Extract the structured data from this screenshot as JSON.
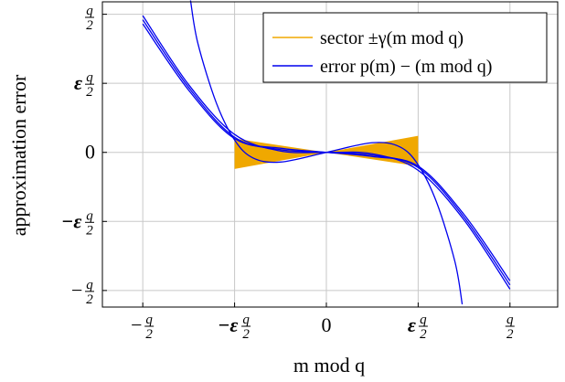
{
  "chart_data": {
    "type": "line",
    "xlabel": "m mod q",
    "ylabel": "approximation error",
    "x_ticks": [
      {
        "value": -1.0,
        "pre": "−",
        "eps": false
      },
      {
        "value": -0.5,
        "pre": "−",
        "eps": true
      },
      {
        "value": 0.0,
        "plain": "0"
      },
      {
        "value": 0.5,
        "pre": "",
        "eps": true
      },
      {
        "value": 1.0,
        "pre": "",
        "eps": false
      }
    ],
    "y_ticks": [
      {
        "value": 1.0,
        "pre": "",
        "eps": false
      },
      {
        "value": 0.5,
        "pre": "",
        "eps": true
      },
      {
        "value": 0.0,
        "plain": "0"
      },
      {
        "value": -0.5,
        "pre": "−",
        "eps": true
      },
      {
        "value": -1.0,
        "pre": "−",
        "eps": false
      }
    ],
    "frac_num": "q",
    "frac_den": "2",
    "eps_symbol": "ε",
    "xlim": [
      -1.22,
      1.26
    ],
    "ylim": [
      -1.12,
      1.09
    ],
    "grid": true,
    "legend_position": "top-right",
    "legend": [
      {
        "label": "sector ±γ(m mod q)",
        "color": "#f0a800"
      },
      {
        "label": "error p(m) − (m mod q)",
        "color": "#0000ee"
      }
    ],
    "series": [
      {
        "name": "sector ±γ(m mod q)",
        "kind": "band",
        "color": "#f0a800",
        "x": [
          -0.5,
          0.0,
          0.5
        ],
        "upper": [
          0.1,
          0.0,
          0.12
        ],
        "lower": [
          -0.12,
          0.0,
          -0.1
        ]
      },
      {
        "name": "error p(m) − (m mod q)",
        "kind": "lines",
        "color": "#0000ee",
        "lines": [
          {
            "x": [
              -1.0,
              -0.75,
              -0.5,
              -0.25,
              0.0,
              0.25,
              0.5,
              0.75,
              1.0
            ],
            "y": [
              0.99,
              0.49,
              0.13,
              0.01,
              0.0,
              -0.01,
              -0.13,
              -0.49,
              -0.99
            ]
          },
          {
            "x": [
              -1.0,
              -0.75,
              -0.5,
              -0.25,
              0.0,
              0.25,
              0.5,
              0.75,
              1.0
            ],
            "y": [
              0.96,
              0.47,
              0.11,
              0.02,
              0.0,
              -0.02,
              -0.11,
              -0.47,
              -0.96
            ]
          },
          {
            "x": [
              -1.0,
              -0.75,
              -0.5,
              -0.25,
              0.0,
              0.25,
              0.5,
              0.75,
              1.0
            ],
            "y": [
              0.93,
              0.45,
              0.1,
              0.03,
              0.0,
              -0.03,
              -0.1,
              -0.45,
              -0.93
            ]
          },
          {
            "x": [
              -0.74,
              -0.7,
              -0.6,
              -0.5,
              -0.4,
              -0.25,
              0.0,
              0.25,
              0.4,
              0.5,
              0.6,
              0.7,
              0.74
            ],
            "y": [
              1.1,
              0.79,
              0.36,
              0.09,
              -0.04,
              -0.07,
              0.0,
              0.07,
              0.04,
              -0.09,
              -0.36,
              -0.79,
              -1.1
            ]
          }
        ]
      }
    ]
  }
}
